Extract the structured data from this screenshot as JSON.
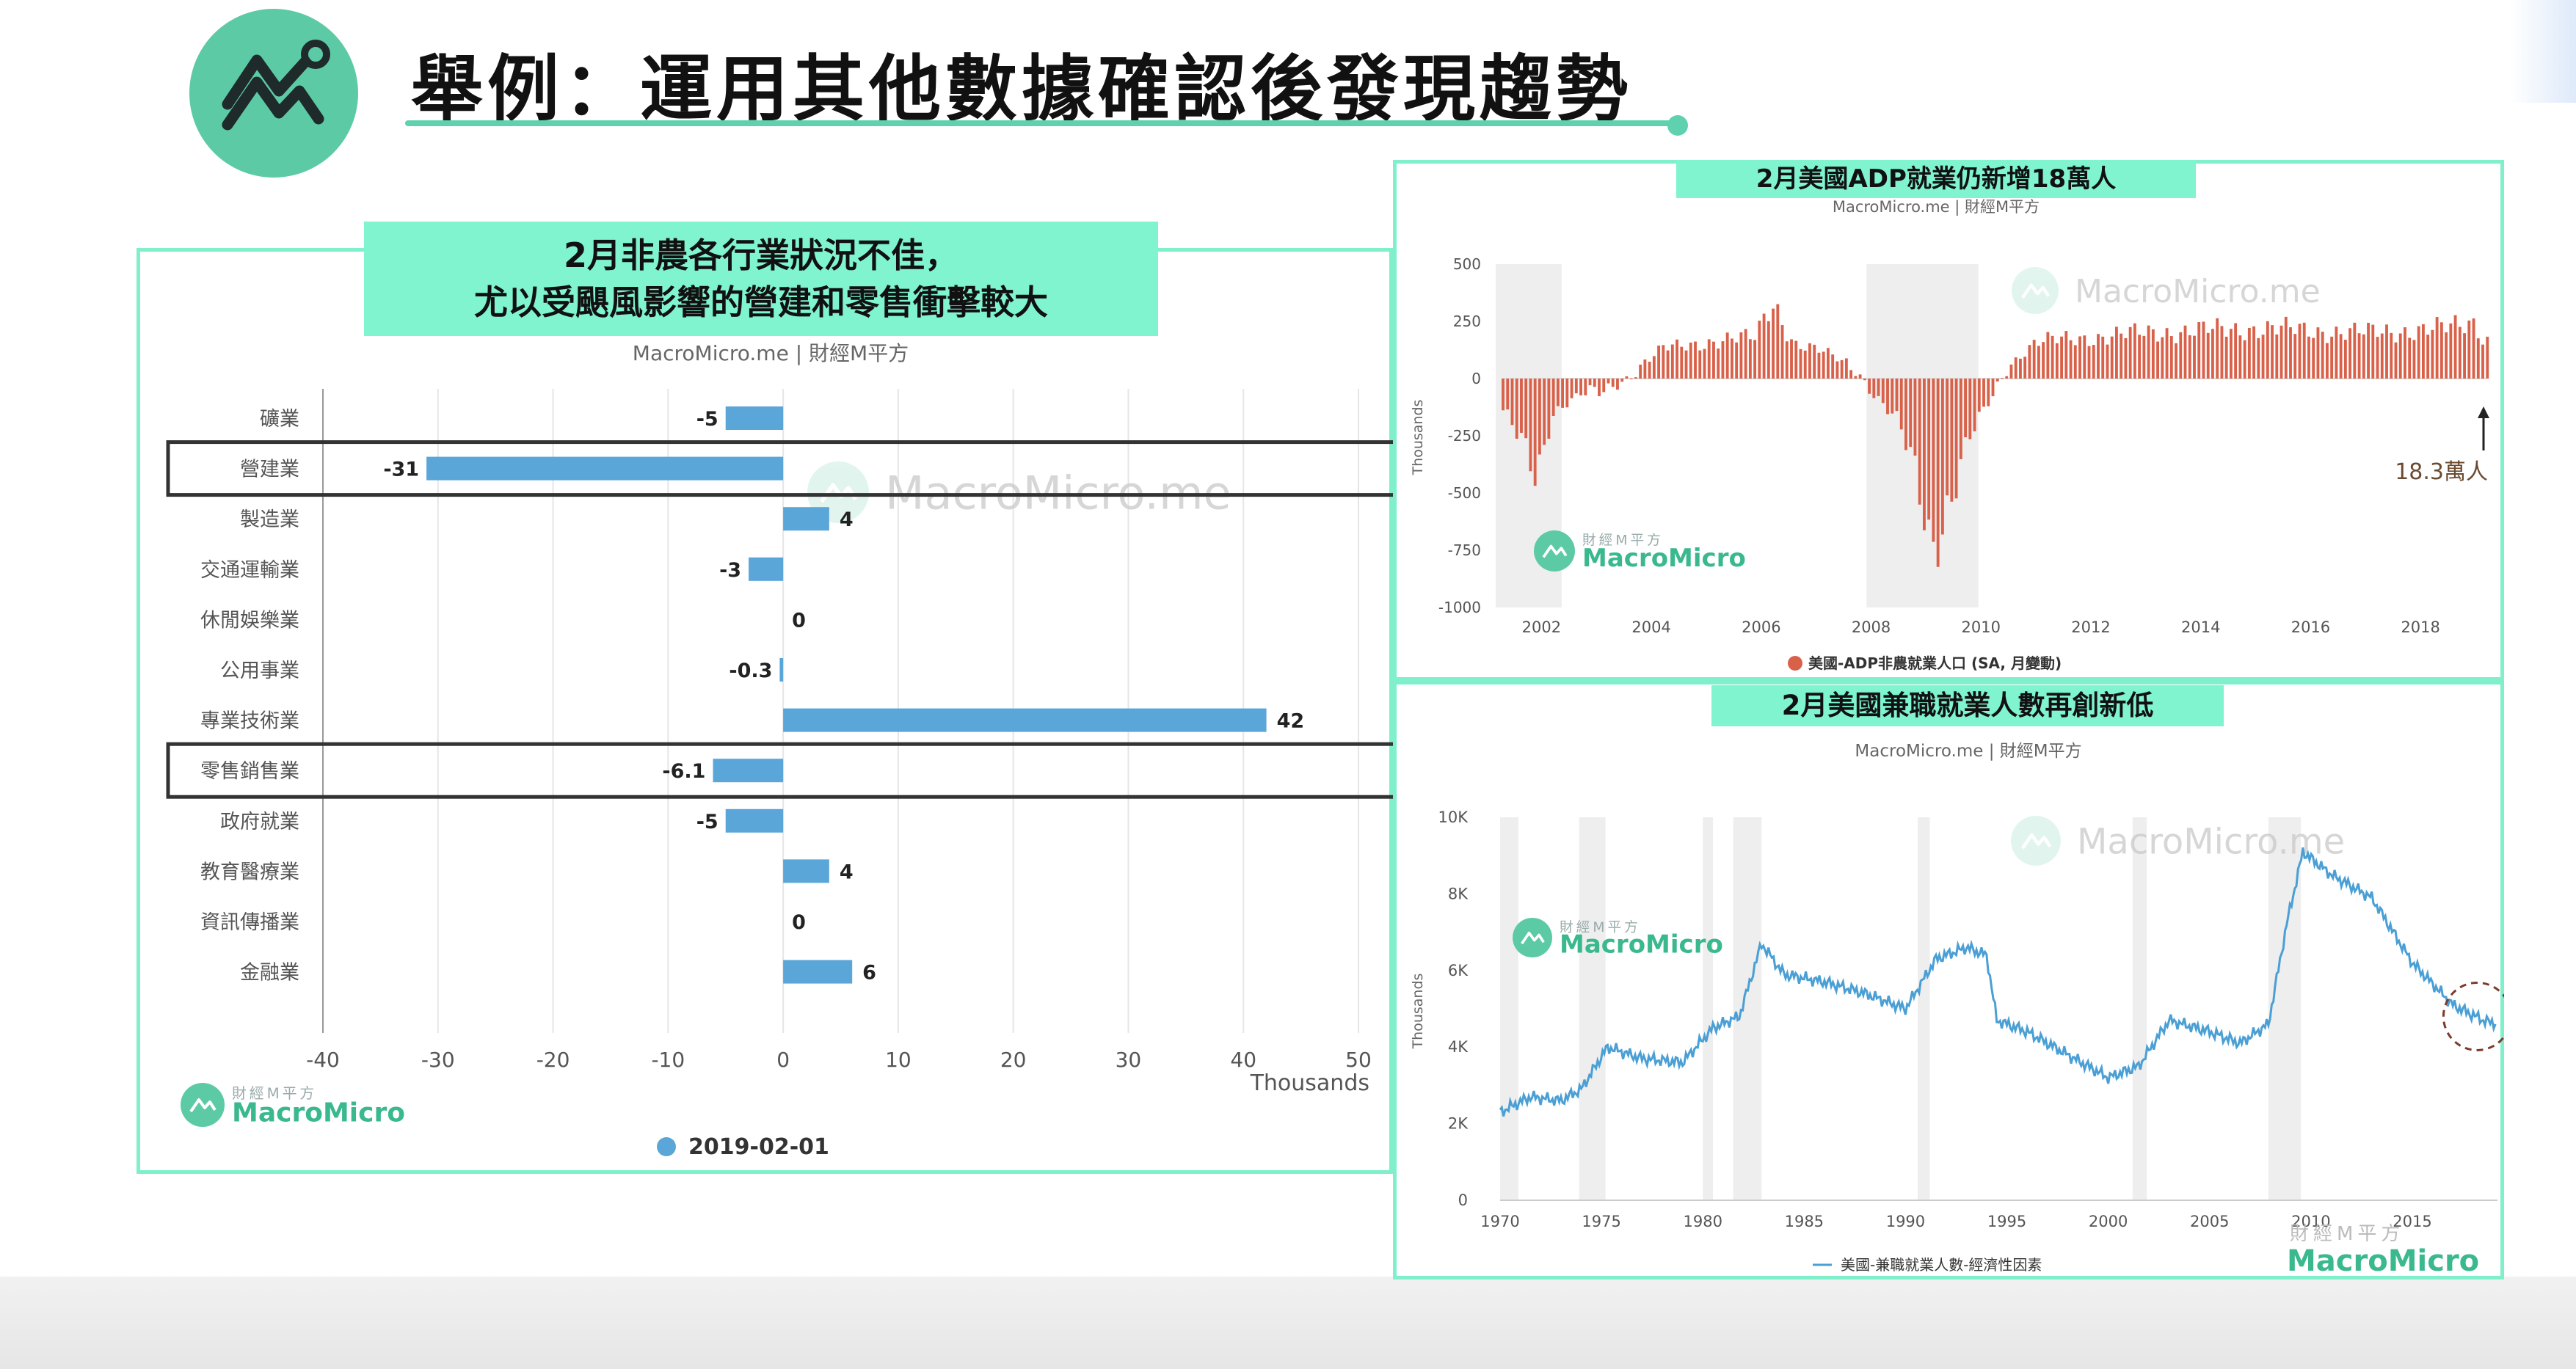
{
  "page": {
    "title": "舉例：運用其他數據確認後發現趨勢",
    "logo_icon": "chart-line-icon",
    "accent_color": "#7ff4cf"
  },
  "watermark": {
    "brand_small": "財經M平方",
    "brand_name": "MacroMicro",
    "site": "MacroMicro.me"
  },
  "chart_data": [
    {
      "type": "bar",
      "orientation": "horizontal",
      "title_line1": "2月非農各行業狀況不佳，",
      "title_line2": "尤以受颶風影響的營建和零售衝擊較大",
      "subtitle": "MacroMicro.me | 財經M平方",
      "categories": [
        "礦業",
        "營建業",
        "製造業",
        "交通運輸業",
        "休閒娛樂業",
        "公用事業",
        "專業技術業",
        "零售銷售業",
        "政府就業",
        "教育醫療業",
        "資訊傳播業",
        "金融業"
      ],
      "values": [
        -5,
        -31,
        4,
        -3,
        0,
        -0.3,
        42,
        -6.1,
        -5,
        4,
        0,
        6
      ],
      "value_labels": [
        "-5",
        "-31",
        "4",
        "-3",
        "0",
        "-0.3",
        "42",
        "-6.1",
        "-5",
        "4",
        "0",
        "6"
      ],
      "highlighted": [
        "營建業",
        "零售銷售業"
      ],
      "xlim": [
        -40,
        50
      ],
      "xticks": [
        "-40",
        "-30",
        "-20",
        "-10",
        "0",
        "10",
        "20",
        "30",
        "40",
        "50"
      ],
      "xlabel": "Thousands",
      "series": [
        {
          "name": "2019-02-01",
          "color": "#5aa6d8"
        }
      ],
      "grid": true,
      "legend": "bottom-center"
    },
    {
      "type": "bar",
      "title": "2月美國ADP就業仍新增18萬人",
      "subtitle": "MacroMicro.me | 財經M平方",
      "ylabel": "Thousands",
      "ylim": [
        -1000,
        500
      ],
      "yticks": [
        "500",
        "250",
        "0",
        "-250",
        "-500",
        "-750",
        "-1000"
      ],
      "xticks": [
        "2002",
        "2004",
        "2006",
        "2008",
        "2010",
        "2012",
        "2014",
        "2016",
        "2018"
      ],
      "x_range": [
        "2001-04",
        "2019-02"
      ],
      "recession_shading": [
        [
          "2001-03",
          "2001-11"
        ],
        [
          "2007-12",
          "2009-06"
        ]
      ],
      "annotation": "18.3萬人",
      "latest_value": 183,
      "keyframes": [
        {
          "x": 2001.3,
          "y": -150
        },
        {
          "x": 2001.7,
          "y": -300
        },
        {
          "x": 2001.9,
          "y": -420
        },
        {
          "x": 2002.2,
          "y": -150
        },
        {
          "x": 2002.7,
          "y": -70
        },
        {
          "x": 2003.1,
          "y": -60
        },
        {
          "x": 2003.6,
          "y": 10
        },
        {
          "x": 2004.2,
          "y": 130
        },
        {
          "x": 2005.0,
          "y": 160
        },
        {
          "x": 2005.9,
          "y": 180
        },
        {
          "x": 2006.2,
          "y": 350
        },
        {
          "x": 2006.6,
          "y": 150
        },
        {
          "x": 2007.2,
          "y": 110
        },
        {
          "x": 2007.7,
          "y": 50
        },
        {
          "x": 2008.0,
          "y": -50
        },
        {
          "x": 2008.5,
          "y": -200
        },
        {
          "x": 2008.8,
          "y": -400
        },
        {
          "x": 2009.1,
          "y": -720
        },
        {
          "x": 2009.4,
          "y": -560
        },
        {
          "x": 2009.8,
          "y": -260
        },
        {
          "x": 2010.2,
          "y": -80
        },
        {
          "x": 2010.5,
          "y": 60
        },
        {
          "x": 2011.0,
          "y": 160
        },
        {
          "x": 2013.0,
          "y": 200
        },
        {
          "x": 2015.0,
          "y": 220
        },
        {
          "x": 2017.0,
          "y": 200
        },
        {
          "x": 2018.5,
          "y": 220
        },
        {
          "x": 2019.0,
          "y": 250
        },
        {
          "x": 2019.12,
          "y": 183
        }
      ],
      "series": [
        {
          "name": "美國-ADP非農就業人口 (SA, 月變動)",
          "color": "#d9614a"
        }
      ],
      "legend": "bottom-center"
    },
    {
      "type": "line",
      "title": "2月美國兼職就業人數再創新低",
      "subtitle": "MacroMicro.me | 財經M平方",
      "ylabel": "Thousands",
      "ylim": [
        0,
        10000
      ],
      "yticks": [
        "10K",
        "8K",
        "6K",
        "4K",
        "2K",
        "0"
      ],
      "xticks": [
        "1970",
        "1975",
        "1980",
        "1985",
        "1990",
        "1995",
        "2000",
        "2005",
        "2010",
        "2015"
      ],
      "x_range": [
        1970,
        2019.2
      ],
      "recession_shading": [
        [
          1970.0,
          1970.9
        ],
        [
          1973.9,
          1975.2
        ],
        [
          1980.0,
          1980.5
        ],
        [
          1981.5,
          1982.9
        ],
        [
          1990.6,
          1991.2
        ],
        [
          2001.2,
          2001.9
        ],
        [
          2007.9,
          2009.5
        ]
      ],
      "points": [
        {
          "x": 1970,
          "y": 2300
        },
        {
          "x": 1971.5,
          "y": 2700
        },
        {
          "x": 1973,
          "y": 2600
        },
        {
          "x": 1974,
          "y": 2900
        },
        {
          "x": 1975.3,
          "y": 4000
        },
        {
          "x": 1977,
          "y": 3700
        },
        {
          "x": 1979,
          "y": 3600
        },
        {
          "x": 1980.5,
          "y": 4500
        },
        {
          "x": 1981.8,
          "y": 4800
        },
        {
          "x": 1982.9,
          "y": 6700
        },
        {
          "x": 1984,
          "y": 5900
        },
        {
          "x": 1986,
          "y": 5700
        },
        {
          "x": 1988,
          "y": 5400
        },
        {
          "x": 1990,
          "y": 5000
        },
        {
          "x": 1991.5,
          "y": 6300
        },
        {
          "x": 1993,
          "y": 6600
        },
        {
          "x": 1994,
          "y": 6400
        },
        {
          "x": 1994.5,
          "y": 4700
        },
        {
          "x": 1996,
          "y": 4400
        },
        {
          "x": 1998,
          "y": 3800
        },
        {
          "x": 2000,
          "y": 3200
        },
        {
          "x": 2001.5,
          "y": 3500
        },
        {
          "x": 2003,
          "y": 4700
        },
        {
          "x": 2005,
          "y": 4400
        },
        {
          "x": 2006.5,
          "y": 4100
        },
        {
          "x": 2007.9,
          "y": 4600
        },
        {
          "x": 2008.8,
          "y": 7200
        },
        {
          "x": 2009.6,
          "y": 9100
        },
        {
          "x": 2011,
          "y": 8500
        },
        {
          "x": 2013,
          "y": 7900
        },
        {
          "x": 2015,
          "y": 6200
        },
        {
          "x": 2017,
          "y": 5100
        },
        {
          "x": 2018.5,
          "y": 4700
        },
        {
          "x": 2019.1,
          "y": 4600
        }
      ],
      "series": [
        {
          "name": "美國-兼職就業人數-經濟性因素",
          "color": "#4a9fd5"
        }
      ],
      "legend": "bottom-center"
    }
  ]
}
